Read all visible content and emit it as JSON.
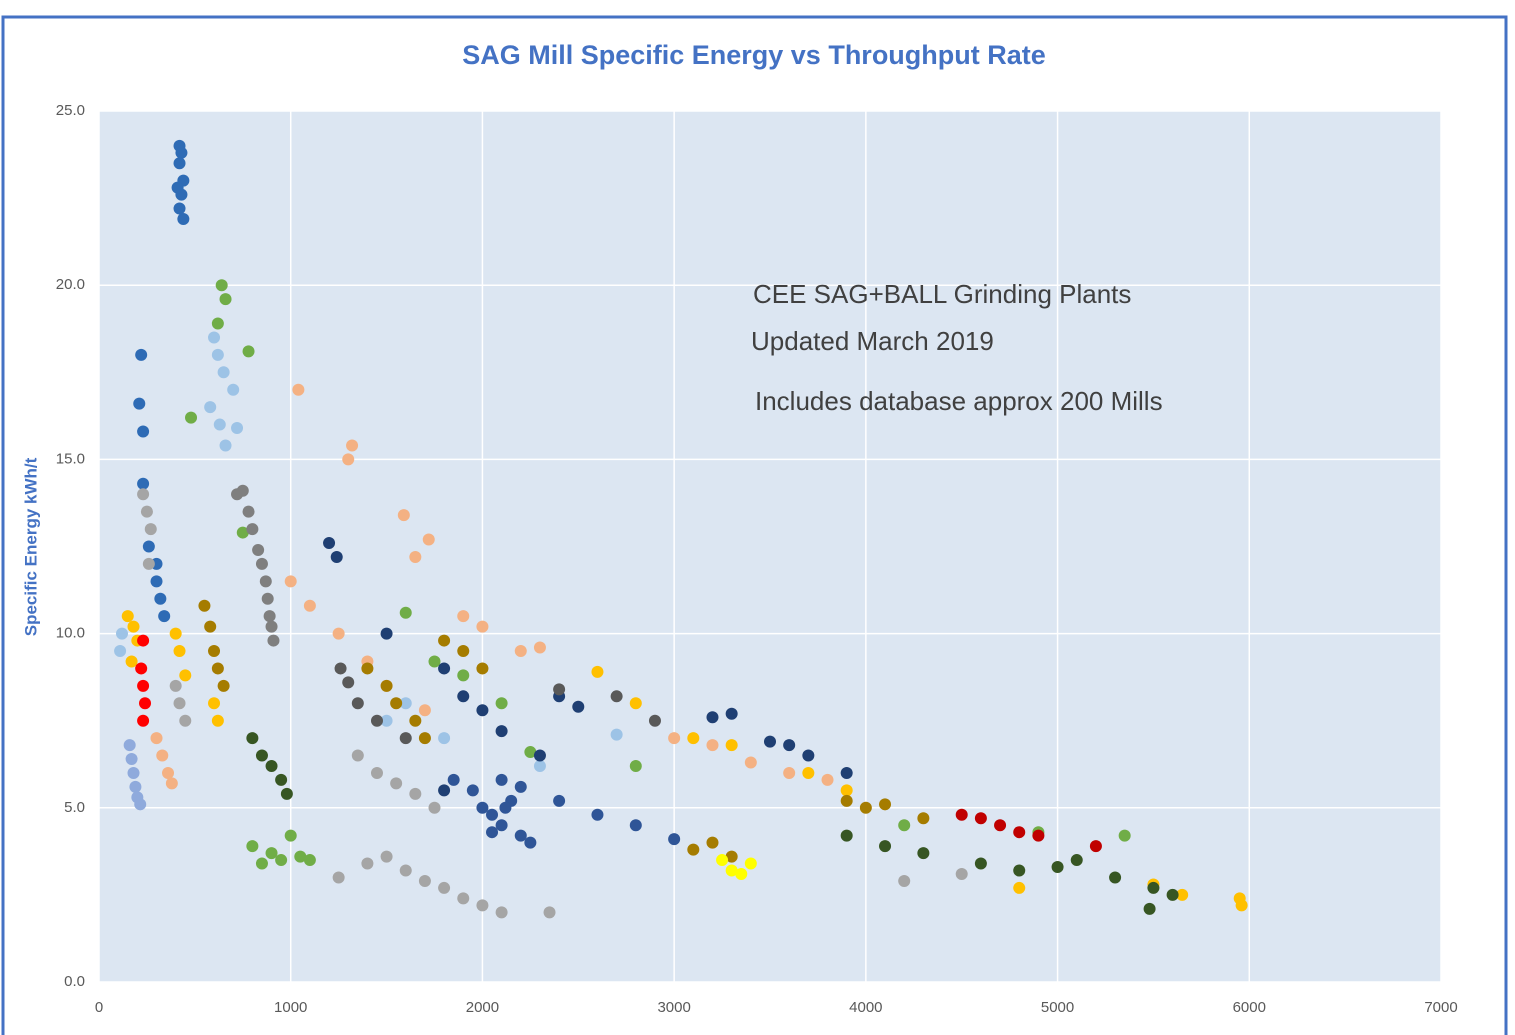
{
  "chart_data": {
    "type": "scatter",
    "title": "SAG Mill Specific Energy vs Throughput Rate",
    "ylabel": "Specific Energy kWh/t",
    "annotations": [
      "CEE SAG+BALL Grinding Plants",
      "Updated March 2019",
      "Includes database approx 200 Mills"
    ],
    "xlim": [
      0,
      7000
    ],
    "ylim": [
      0,
      25
    ],
    "xticks": [
      0,
      1000,
      2000,
      3000,
      4000,
      5000,
      6000,
      7000
    ],
    "yticks": [
      {
        "value": 0,
        "label": "0.0"
      },
      {
        "value": 5,
        "label": "5.0"
      },
      {
        "value": 10,
        "label": "10.0"
      },
      {
        "value": 15,
        "label": "15.0"
      },
      {
        "value": 20,
        "label": "20.0"
      },
      {
        "value": 25,
        "label": "25.0"
      }
    ],
    "grid": true,
    "series": [
      {
        "color": "#2e6bb5",
        "x": [
          420,
          430,
          420,
          440,
          430,
          420,
          440,
          410,
          220,
          210,
          230,
          230,
          260,
          300,
          320,
          340,
          300
        ],
        "values": [
          24.0,
          23.8,
          23.5,
          23.0,
          22.6,
          22.2,
          21.9,
          22.8,
          18.0,
          16.6,
          15.8,
          14.3,
          12.5,
          11.5,
          11.0,
          10.5,
          12.0
        ]
      },
      {
        "color": "#9dc3e6",
        "x": [
          600,
          620,
          650,
          700,
          580,
          630,
          720,
          660,
          120,
          110,
          1600,
          1800,
          1500,
          2300,
          2700
        ],
        "values": [
          18.5,
          18.0,
          17.5,
          17.0,
          16.5,
          16.0,
          15.9,
          15.4,
          10.0,
          9.5,
          8.0,
          7.0,
          7.5,
          6.2,
          7.1
        ]
      },
      {
        "color": "#70ad47",
        "x": [
          640,
          660,
          620,
          780,
          480,
          750,
          800,
          900,
          950,
          1000,
          1050,
          850,
          1100,
          1600,
          1750,
          1900,
          2100,
          2250,
          2800,
          4200,
          4900,
          5350
        ],
        "values": [
          20.0,
          19.6,
          18.9,
          18.1,
          16.2,
          12.9,
          3.9,
          3.7,
          3.5,
          4.2,
          3.6,
          3.4,
          3.5,
          10.6,
          9.2,
          8.8,
          8.0,
          6.6,
          6.2,
          4.5,
          4.3,
          4.2
        ]
      },
      {
        "color": "#7f7f7f",
        "x": [
          720,
          750,
          780,
          800,
          830,
          850,
          870,
          880,
          890,
          900,
          910
        ],
        "values": [
          14.0,
          14.1,
          13.5,
          13.0,
          12.4,
          12.0,
          11.5,
          11.0,
          10.5,
          10.2,
          9.8
        ]
      },
      {
        "color": "#a5a5a5",
        "x": [
          230,
          250,
          270,
          260,
          400,
          420,
          450,
          1350,
          1450,
          1550,
          1650,
          1750,
          1250,
          1400,
          1500,
          1600,
          1700,
          1800,
          1900,
          2000,
          2100,
          2350,
          4200,
          4500
        ],
        "values": [
          14.0,
          13.5,
          13.0,
          12.0,
          8.5,
          8.0,
          7.5,
          6.5,
          6.0,
          5.7,
          5.4,
          5.0,
          3.0,
          3.4,
          3.6,
          3.2,
          2.9,
          2.7,
          2.4,
          2.2,
          2.0,
          2.0,
          2.9,
          3.1
        ]
      },
      {
        "color": "#f4b183",
        "x": [
          1040,
          1300,
          1320,
          1590,
          1720,
          1650,
          1000,
          1100,
          1250,
          1400,
          1500,
          1700,
          1900,
          2000,
          2200,
          2300,
          3000,
          3200,
          3400,
          3600,
          3800,
          300,
          330,
          360,
          380
        ],
        "values": [
          17.0,
          15.0,
          15.4,
          13.4,
          12.7,
          12.2,
          11.5,
          10.8,
          10.0,
          9.2,
          8.5,
          7.8,
          10.5,
          10.2,
          9.5,
          9.6,
          7.0,
          6.8,
          6.3,
          6.0,
          5.8,
          7.0,
          6.5,
          6.0,
          5.7
        ]
      },
      {
        "color": "#ffc000",
        "x": [
          150,
          180,
          200,
          170,
          400,
          420,
          450,
          600,
          620,
          2600,
          2800,
          3100,
          3300,
          3700,
          3900,
          5500,
          5650,
          5950,
          5960,
          4800
        ],
        "values": [
          10.5,
          10.2,
          9.8,
          9.2,
          10.0,
          9.5,
          8.8,
          8.0,
          7.5,
          8.9,
          8.0,
          7.0,
          6.8,
          6.0,
          5.5,
          2.8,
          2.5,
          2.4,
          2.2,
          2.7
        ]
      },
      {
        "color": "#a57c00",
        "x": [
          550,
          580,
          600,
          620,
          650,
          1400,
          1500,
          1550,
          1650,
          1700,
          1800,
          1900,
          2000,
          3100,
          3200,
          3300,
          3900,
          4000,
          4100,
          4300
        ],
        "values": [
          10.8,
          10.2,
          9.5,
          9.0,
          8.5,
          9.0,
          8.5,
          8.0,
          7.5,
          7.0,
          9.8,
          9.5,
          9.0,
          3.8,
          4.0,
          3.6,
          5.2,
          5.0,
          5.1,
          4.7
        ]
      },
      {
        "color": "#ff0000",
        "x": [
          230,
          220,
          230,
          240,
          230
        ],
        "values": [
          9.8,
          9.0,
          8.5,
          8.0,
          7.5
        ]
      },
      {
        "color": "#8faadc",
        "x": [
          160,
          170,
          180,
          190,
          200,
          215
        ],
        "values": [
          6.8,
          6.4,
          6.0,
          5.6,
          5.3,
          5.1
        ]
      },
      {
        "color": "#375623",
        "x": [
          800,
          850,
          900,
          950,
          980,
          4100,
          4300,
          4600,
          4800,
          5000,
          5100,
          5300,
          5500,
          5600,
          3900,
          5480
        ],
        "values": [
          7.0,
          6.5,
          6.2,
          5.8,
          5.4,
          3.9,
          3.7,
          3.4,
          3.2,
          3.3,
          3.5,
          3.0,
          2.7,
          2.5,
          4.2,
          2.1
        ]
      },
      {
        "color": "#1f3f73",
        "x": [
          1200,
          1240,
          1500,
          1800,
          1900,
          2000,
          2100,
          2300,
          2400,
          2500,
          3200,
          3300,
          3500,
          3600,
          3700,
          3900,
          1800
        ],
        "values": [
          12.6,
          12.2,
          10.0,
          9.0,
          8.2,
          7.8,
          7.2,
          6.5,
          8.2,
          7.9,
          7.6,
          7.7,
          6.9,
          6.8,
          6.5,
          6.0,
          5.5
        ]
      },
      {
        "color": "#2f5597",
        "x": [
          2000,
          2050,
          2100,
          2150,
          2200,
          1950,
          2100,
          2200,
          2250,
          1850,
          2050,
          2120,
          2400,
          2600,
          2800,
          3000
        ],
        "values": [
          5.0,
          4.8,
          4.5,
          5.2,
          4.2,
          5.5,
          5.8,
          5.6,
          4.0,
          5.8,
          4.3,
          5.0,
          5.2,
          4.8,
          4.5,
          4.1
        ]
      },
      {
        "color": "#595959",
        "x": [
          1260,
          1300,
          1350,
          1450,
          1600,
          2400,
          2700,
          2900
        ],
        "values": [
          9.0,
          8.6,
          8.0,
          7.5,
          7.0,
          8.4,
          8.2,
          7.5
        ]
      },
      {
        "color": "#ffff00",
        "x": [
          3250,
          3300,
          3400,
          3350
        ],
        "values": [
          3.5,
          3.2,
          3.4,
          3.1
        ]
      },
      {
        "color": "#c00000",
        "x": [
          4500,
          4600,
          4700,
          4800,
          4900,
          5200
        ],
        "values": [
          4.8,
          4.7,
          4.5,
          4.3,
          4.2,
          3.9
        ]
      }
    ]
  }
}
